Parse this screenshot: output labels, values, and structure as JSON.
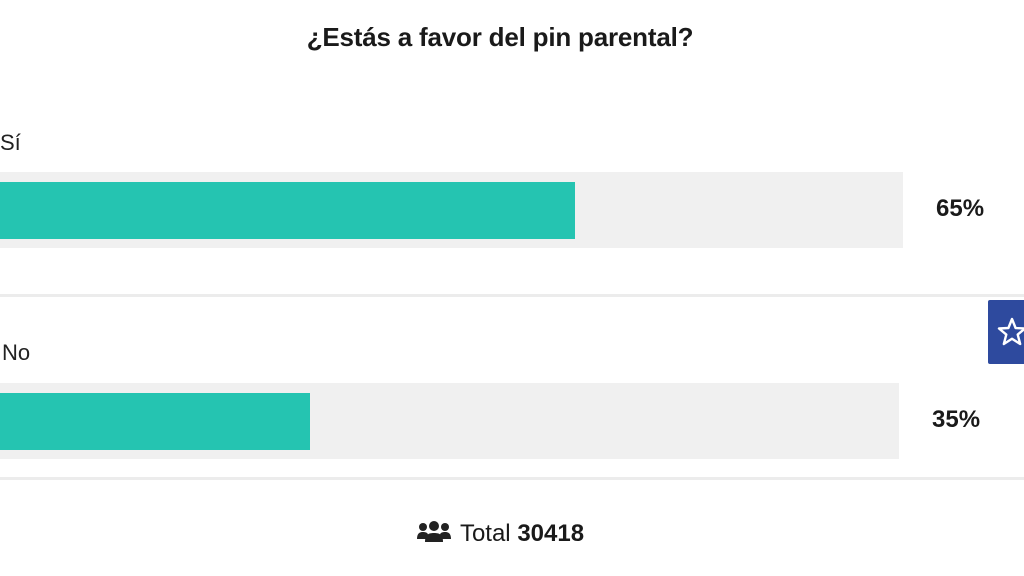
{
  "poll": {
    "title": "¿Estás a favor del pin parental?",
    "options": [
      {
        "label": "Sí",
        "percent_text": "65%",
        "share": 0.65
      },
      {
        "label": "No",
        "percent_text": "35%",
        "share": 0.35
      }
    ],
    "total_label": "Total",
    "total_count": "30418"
  },
  "colors": {
    "bar_fill": "#25c4b1",
    "bar_track": "#f0f0f0",
    "fav_button": "#2e4a9e"
  },
  "icons": {
    "total": "users-icon",
    "fav": "star-icon"
  }
}
